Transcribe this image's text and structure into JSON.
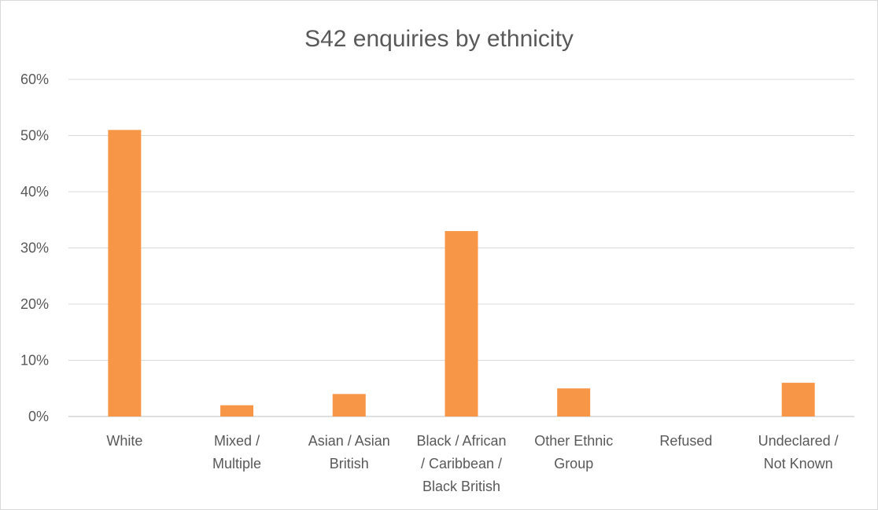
{
  "chart_data": {
    "type": "bar",
    "title": "S42 enquiries by ethnicity",
    "categories": [
      [
        "White"
      ],
      [
        "Mixed /",
        "Multiple"
      ],
      [
        "Asian / Asian",
        "British"
      ],
      [
        "Black / African",
        "/ Caribbean /",
        "Black British"
      ],
      [
        "Other Ethnic",
        "Group"
      ],
      [
        "Refused"
      ],
      [
        "Undeclared /",
        "Not Known"
      ]
    ],
    "values": [
      51,
      2,
      4,
      33,
      5,
      0,
      6
    ],
    "ylim": [
      0,
      60
    ],
    "yticks": [
      "0%",
      "10%",
      "20%",
      "30%",
      "40%",
      "50%",
      "60%"
    ],
    "bar_color": "#f79646",
    "grid": true,
    "legend": "none"
  }
}
